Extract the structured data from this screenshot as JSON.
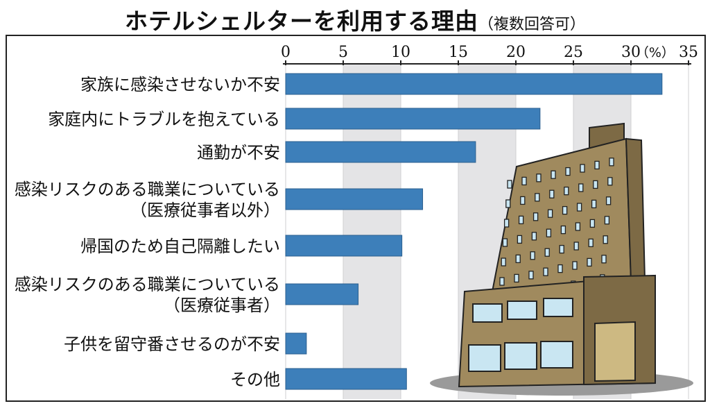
{
  "header": {
    "title": "ホテルシェルターを利用する理由",
    "subtitle": "（複数回答可）"
  },
  "colors": {
    "bar": "#3d7fba",
    "band": "#e4e4e6",
    "building_main": "#a08a5e",
    "building_dark": "#7d6a45",
    "window": "#c9e6f2",
    "shadow": "#9a9a9a"
  },
  "chart_data": {
    "type": "bar",
    "orientation": "horizontal",
    "unit": "（%）",
    "xlim": [
      0,
      35
    ],
    "ticks": [
      0,
      5,
      10,
      15,
      20,
      25,
      30,
      35
    ],
    "tick_labels": [
      "0",
      "5",
      "10",
      "15",
      "20",
      "25",
      "30",
      "35"
    ],
    "categories": [
      [
        "家族に感染させないか不安"
      ],
      [
        "家庭内にトラブルを抱えている"
      ],
      [
        "通勤が不安"
      ],
      [
        "感染リスクのある職業についている",
        "（医療従事者以外）"
      ],
      [
        "帰国のため自己隔離したい"
      ],
      [
        "感染リスクのある職業についている",
        "（医療従事者）"
      ],
      [
        "子供を留守番させるのが不安"
      ],
      [
        "その他"
      ]
    ],
    "values": [
      32.7,
      22.1,
      16.5,
      11.9,
      10.1,
      6.3,
      1.8,
      10.5
    ],
    "grid": "alternating vertical bands",
    "legend": "none"
  }
}
